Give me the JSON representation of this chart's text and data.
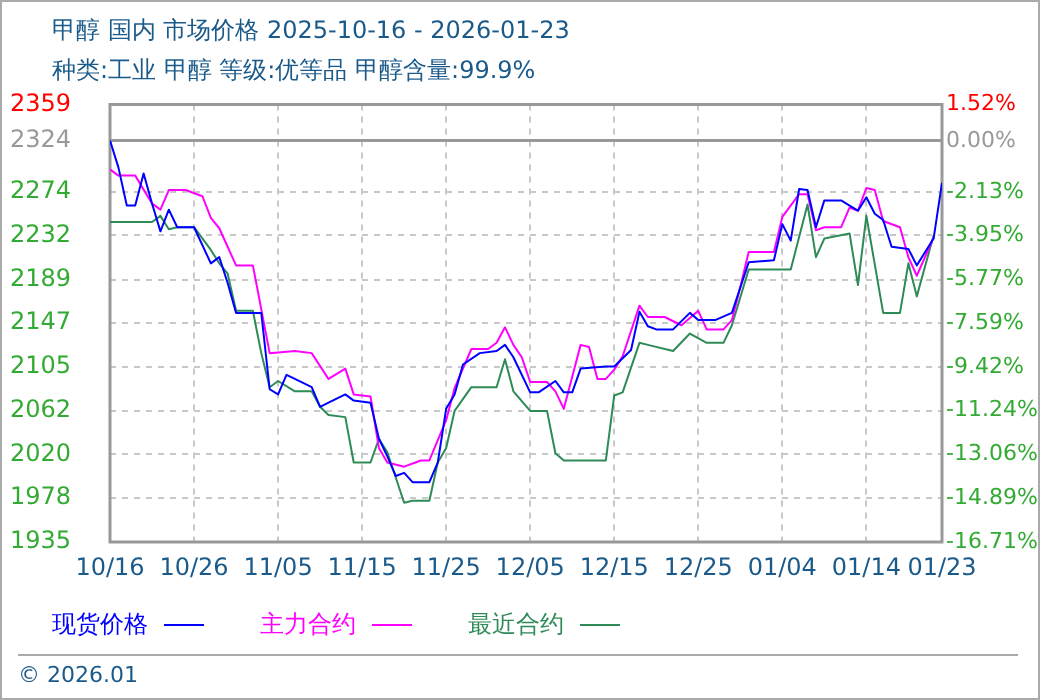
{
  "chart_data": {
    "type": "line",
    "title": "甲醇 国内 市场价格 2025-10-16 - 2026-01-23",
    "subtitle": "种类:工业 甲醇 等级:优等品 甲醇含量:99.9%",
    "xlim": [
      "2025-10-16",
      "2026-01-23"
    ],
    "xticks": [
      {
        "value": "2025-10-16",
        "label": "10/16"
      },
      {
        "value": "2025-10-26",
        "label": "10/26"
      },
      {
        "value": "2025-11-05",
        "label": "11/05"
      },
      {
        "value": "2025-11-15",
        "label": "11/15"
      },
      {
        "value": "2025-11-25",
        "label": "11/25"
      },
      {
        "value": "2025-12-05",
        "label": "12/05"
      },
      {
        "value": "2025-12-15",
        "label": "12/15"
      },
      {
        "value": "2025-12-25",
        "label": "12/25"
      },
      {
        "value": "2026-01-04",
        "label": "01/04"
      },
      {
        "value": "2026-01-14",
        "label": "01/14"
      },
      {
        "value": "2026-01-23",
        "label": "01/23"
      }
    ],
    "ylim": [
      1935,
      2359
    ],
    "yticks": [
      1935,
      1978,
      2020,
      2062,
      2105,
      2147,
      2189,
      2232,
      2274,
      2324,
      2359
    ],
    "y2lim": [
      -16.71,
      1.52
    ],
    "y2ticks": [
      {
        "value": -16.71,
        "label": "-16.71%"
      },
      {
        "value": -14.89,
        "label": "-14.89%"
      },
      {
        "value": -13.06,
        "label": "-13.06%"
      },
      {
        "value": -11.24,
        "label": "-11.24%"
      },
      {
        "value": -9.42,
        "label": "-9.42%"
      },
      {
        "value": -7.59,
        "label": "-7.59%"
      },
      {
        "value": -5.77,
        "label": "-5.77%"
      },
      {
        "value": -3.95,
        "label": "-3.95%"
      },
      {
        "value": -2.13,
        "label": "-2.13%"
      },
      {
        "value": 0,
        "label": "0.00%"
      },
      {
        "value": 1.52,
        "label": "1.52%"
      }
    ],
    "ref_lines": [
      {
        "axis": "y",
        "value": 2324,
        "color": "#999999"
      }
    ],
    "grid": true,
    "legend": "bottom",
    "marker": "none",
    "line_style": "solid",
    "annotations": [
      "© 2026.01"
    ],
    "series": [
      {
        "name": "现货价格",
        "color": "#0000ff",
        "x": [
          "2025-10-16",
          "2025-10-17",
          "2025-10-18",
          "2025-10-19",
          "2025-10-20",
          "2025-10-21",
          "2025-10-22",
          "2025-10-23",
          "2025-10-24",
          "2025-10-26",
          "2025-10-28",
          "2025-10-29",
          "2025-10-30",
          "2025-10-31",
          "2025-11-03",
          "2025-11-04",
          "2025-11-05",
          "2025-11-06",
          "2025-11-07",
          "2025-11-09",
          "2025-11-10",
          "2025-11-11",
          "2025-11-13",
          "2025-11-14",
          "2025-11-16",
          "2025-11-17",
          "2025-11-18",
          "2025-11-19",
          "2025-11-20",
          "2025-11-21",
          "2025-11-23",
          "2025-11-24",
          "2025-11-25",
          "2025-11-26",
          "2025-11-27",
          "2025-11-29",
          "2025-12-01",
          "2025-12-02",
          "2025-12-03",
          "2025-12-05",
          "2025-12-06",
          "2025-12-08",
          "2025-12-09",
          "2025-12-10",
          "2025-12-11",
          "2025-12-14",
          "2025-12-15",
          "2025-12-17",
          "2025-12-18",
          "2025-12-19",
          "2025-12-20",
          "2025-12-22",
          "2025-12-24",
          "2025-12-25",
          "2025-12-27",
          "2025-12-29",
          "2025-12-31",
          "2026-01-03",
          "2026-01-04",
          "2026-01-05",
          "2026-01-06",
          "2026-01-07",
          "2026-01-08",
          "2026-01-09",
          "2026-01-11",
          "2026-01-12",
          "2026-01-13",
          "2026-01-14",
          "2026-01-15",
          "2026-01-16",
          "2026-01-17",
          "2026-01-19",
          "2026-01-20",
          "2026-01-22",
          "2026-01-23"
        ],
        "values": [
          2324,
          2298,
          2261,
          2261,
          2292,
          2263,
          2236,
          2257,
          2240,
          2240,
          2205,
          2211,
          2186,
          2157,
          2157,
          2083,
          2078,
          2097,
          2093,
          2085,
          2066,
          2070,
          2078,
          2072,
          2070,
          2035,
          2018,
          1999,
          2002,
          1993,
          1993,
          2012,
          2064,
          2078,
          2107,
          2118,
          2120,
          2126,
          2114,
          2080,
          2080,
          2091,
          2080,
          2080,
          2103,
          2105,
          2105,
          2121,
          2158,
          2144,
          2141,
          2141,
          2157,
          2150,
          2150,
          2157,
          2206,
          2208,
          2243,
          2227,
          2277,
          2276,
          2240,
          2266,
          2266,
          2261,
          2256,
          2269,
          2253,
          2247,
          2221,
          2219,
          2203,
          2229,
          2283
        ]
      },
      {
        "name": "主力合约",
        "color": "#ff00ff",
        "x": [
          "2025-10-16",
          "2025-10-17",
          "2025-10-19",
          "2025-10-21",
          "2025-10-22",
          "2025-10-23",
          "2025-10-25",
          "2025-10-27",
          "2025-10-28",
          "2025-10-29",
          "2025-10-31",
          "2025-11-02",
          "2025-11-04",
          "2025-11-07",
          "2025-11-09",
          "2025-11-11",
          "2025-11-13",
          "2025-11-14",
          "2025-11-16",
          "2025-11-17",
          "2025-11-18",
          "2025-11-20",
          "2025-11-22",
          "2025-11-23",
          "2025-11-25",
          "2025-11-26",
          "2025-11-28",
          "2025-11-30",
          "2025-12-01",
          "2025-12-02",
          "2025-12-03",
          "2025-12-04",
          "2025-12-05",
          "2025-12-07",
          "2025-12-08",
          "2025-12-09",
          "2025-12-10",
          "2025-12-11",
          "2025-12-12",
          "2025-12-13",
          "2025-12-14",
          "2025-12-15",
          "2025-12-16",
          "2025-12-18",
          "2025-12-19",
          "2025-12-21",
          "2025-12-23",
          "2025-12-25",
          "2025-12-26",
          "2025-12-28",
          "2025-12-29",
          "2025-12-30",
          "2025-12-31",
          "2026-01-03",
          "2026-01-04",
          "2026-01-06",
          "2026-01-07",
          "2026-01-08",
          "2026-01-09",
          "2026-01-11",
          "2026-01-12",
          "2026-01-13",
          "2026-01-14",
          "2026-01-15",
          "2026-01-16",
          "2026-01-18",
          "2026-01-19",
          "2026-01-20",
          "2026-01-22"
        ],
        "values": [
          2296,
          2290,
          2290,
          2263,
          2257,
          2276,
          2276,
          2270,
          2249,
          2239,
          2203,
          2203,
          2118,
          2120,
          2118,
          2093,
          2103,
          2078,
          2076,
          2026,
          2012,
          2008,
          2014,
          2014,
          2053,
          2084,
          2122,
          2122,
          2128,
          2143,
          2126,
          2114,
          2090,
          2090,
          2081,
          2064,
          2095,
          2126,
          2124,
          2093,
          2093,
          2102,
          2115,
          2164,
          2153,
          2153,
          2145,
          2159,
          2141,
          2141,
          2150,
          2182,
          2216,
          2216,
          2250,
          2272,
          2272,
          2237,
          2240,
          2240,
          2259,
          2256,
          2278,
          2276,
          2246,
          2240,
          2211,
          2193,
          2230
        ]
      },
      {
        "name": "最近合约",
        "color": "#2e8b57",
        "x": [
          "2025-10-16",
          "2025-10-21",
          "2025-10-22",
          "2025-10-23",
          "2025-10-24",
          "2025-10-26",
          "2025-10-28",
          "2025-10-29",
          "2025-10-30",
          "2025-10-31",
          "2025-11-02",
          "2025-11-03",
          "2025-11-04",
          "2025-11-05",
          "2025-11-07",
          "2025-11-09",
          "2025-11-10",
          "2025-11-11",
          "2025-11-13",
          "2025-11-14",
          "2025-11-16",
          "2025-11-17",
          "2025-11-18",
          "2025-11-20",
          "2025-11-21",
          "2025-11-23",
          "2025-11-24",
          "2025-11-25",
          "2025-11-26",
          "2025-11-28",
          "2025-12-01",
          "2025-12-02",
          "2025-12-03",
          "2025-12-05",
          "2025-12-07",
          "2025-12-08",
          "2025-12-09",
          "2025-12-14",
          "2025-12-15",
          "2025-12-16",
          "2025-12-18",
          "2025-12-19",
          "2025-12-22",
          "2025-12-24",
          "2025-12-26",
          "2025-12-28",
          "2025-12-29",
          "2025-12-31",
          "2026-01-05",
          "2026-01-07",
          "2026-01-08",
          "2026-01-09",
          "2026-01-12",
          "2026-01-13",
          "2026-01-14",
          "2026-01-16",
          "2026-01-18",
          "2026-01-19",
          "2026-01-20",
          "2026-01-22"
        ],
        "values": [
          2245,
          2245,
          2251,
          2238,
          2240,
          2240,
          2218,
          2205,
          2195,
          2159,
          2159,
          2118,
          2085,
          2091,
          2081,
          2081,
          2066,
          2058,
          2056,
          2012,
          2012,
          2035,
          2022,
          1973,
          1975,
          1975,
          2012,
          2026,
          2062,
          2085,
          2085,
          2112,
          2081,
          2062,
          2062,
          2021,
          2014,
          2014,
          2077,
          2080,
          2128,
          2126,
          2120,
          2137,
          2128,
          2128,
          2145,
          2199,
          2199,
          2262,
          2211,
          2229,
          2234,
          2184,
          2251,
          2157,
          2157,
          2205,
          2173,
          2232
        ]
      }
    ]
  }
}
